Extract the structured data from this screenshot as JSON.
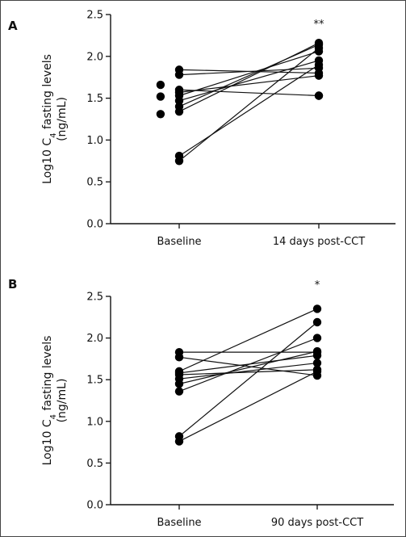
{
  "chart_data": [
    {
      "type": "line",
      "panel_label": "A",
      "ylabel_main": "Log10 C",
      "ylabel_sub": "4",
      "ylabel_rest": " fasting levels",
      "ylabel_unit": "(ng/mL)",
      "categories": [
        "Baseline",
        "14 days post-CCT"
      ],
      "yticks": [
        "0.0",
        "0.5",
        "1.0",
        "1.5",
        "2.0",
        "2.5"
      ],
      "ylim": [
        0,
        2.5
      ],
      "significance": "**",
      "significance_color": "#d0312d",
      "extra_points": [
        {
          "x": "Baseline",
          "y": 1.66,
          "offset": -1
        },
        {
          "x": "Baseline",
          "y": 1.52,
          "offset": -1
        },
        {
          "x": "Baseline",
          "y": 1.31,
          "offset": -1
        },
        {
          "x": "14 days post-CCT",
          "y": 1.53,
          "offset": 0
        }
      ],
      "series": [
        {
          "values": [
            1.84,
            1.8
          ]
        },
        {
          "values": [
            1.78,
            1.86
          ]
        },
        {
          "values": [
            1.6,
            1.53
          ]
        },
        {
          "values": [
            1.57,
            1.77
          ]
        },
        {
          "values": [
            1.53,
            2.06
          ]
        },
        {
          "values": [
            1.47,
            1.95
          ]
        },
        {
          "values": [
            1.4,
            2.14
          ]
        },
        {
          "values": [
            1.34,
            2.16
          ]
        },
        {
          "values": [
            0.81,
            1.9
          ]
        },
        {
          "values": [
            0.75,
            2.1
          ]
        }
      ]
    },
    {
      "type": "line",
      "panel_label": "B",
      "ylabel_main": "Log10 C",
      "ylabel_sub": "4",
      "ylabel_rest": " fasting levels",
      "ylabel_unit": "(ng/mL)",
      "categories": [
        "Baseline",
        "90 days post-CCT"
      ],
      "yticks": [
        "0.0",
        "0.5",
        "1.0",
        "1.5",
        "2.0",
        "2.5"
      ],
      "ylim": [
        0,
        2.5
      ],
      "significance": "*",
      "significance_color": "#222222",
      "extra_points": [],
      "series": [
        {
          "values": [
            1.83,
            1.83
          ]
        },
        {
          "values": [
            1.77,
            1.55
          ]
        },
        {
          "values": [
            1.6,
            2.35
          ]
        },
        {
          "values": [
            1.58,
            1.79
          ]
        },
        {
          "values": [
            1.56,
            1.62
          ]
        },
        {
          "values": [
            1.51,
            1.7
          ]
        },
        {
          "values": [
            1.45,
            1.84
          ]
        },
        {
          "values": [
            1.36,
            2.0
          ]
        },
        {
          "values": [
            0.82,
            2.19
          ]
        },
        {
          "values": [
            0.76,
            1.6
          ]
        }
      ]
    }
  ]
}
